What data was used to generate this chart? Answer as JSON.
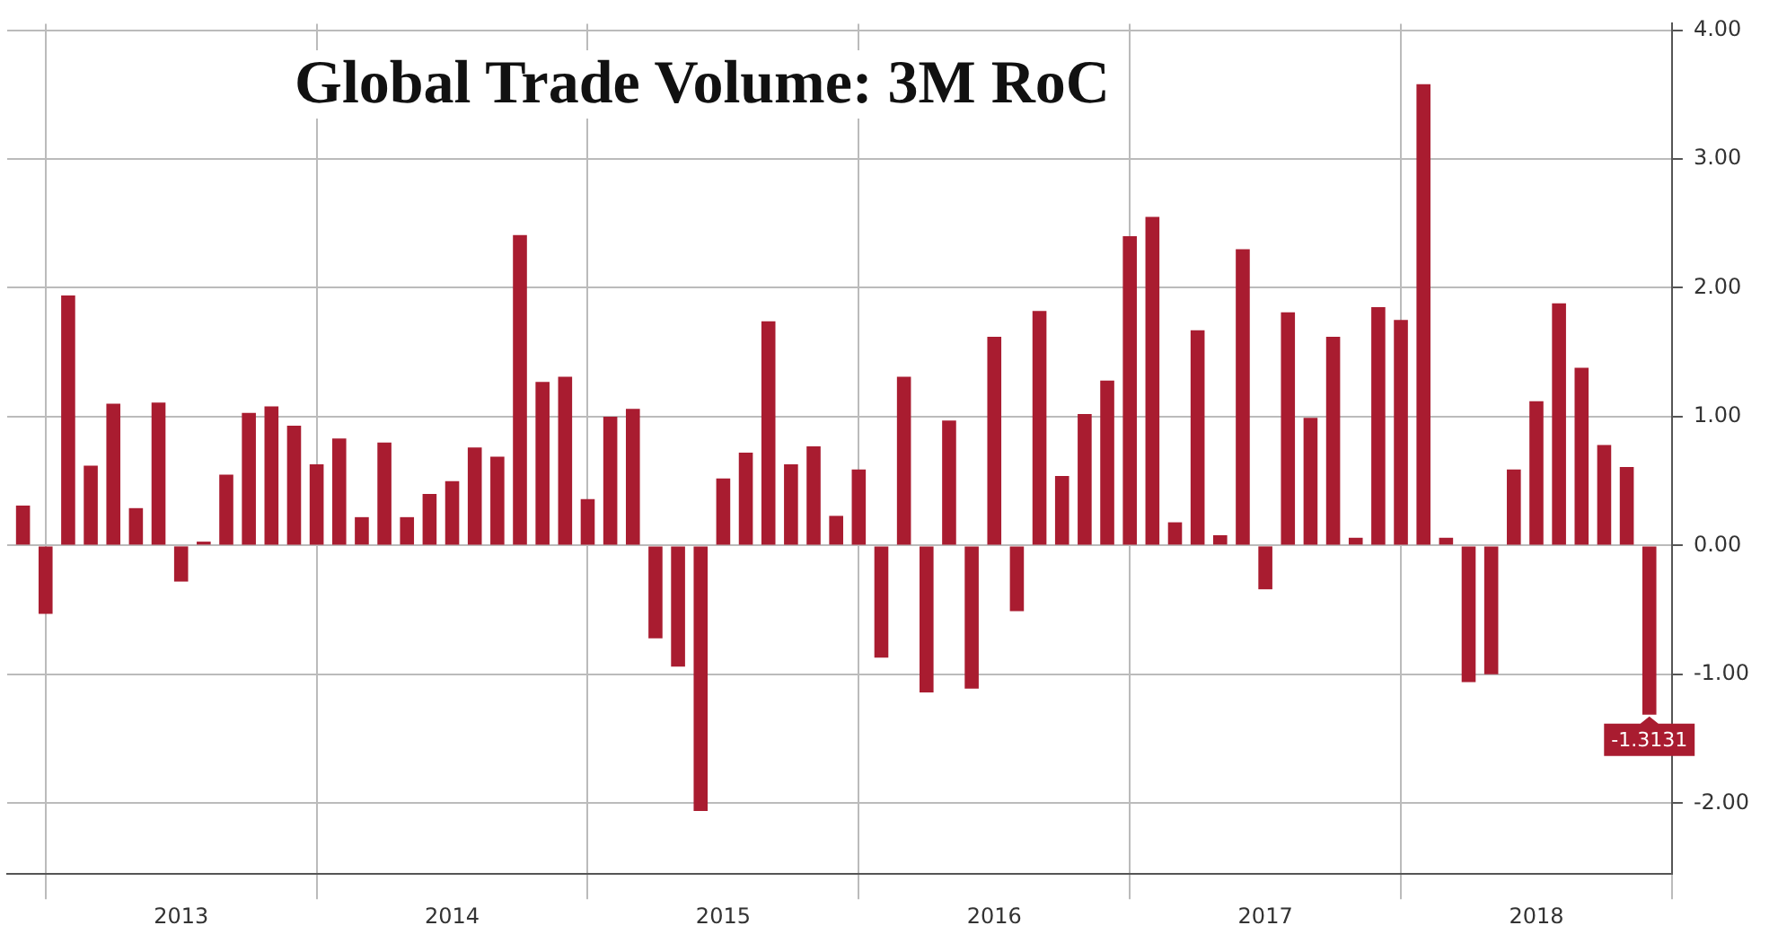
{
  "chart_data": {
    "type": "bar",
    "title": "Global Trade Volume: 3M RoC",
    "x": [
      "2012-12",
      "2013-01",
      "2013-02",
      "2013-03",
      "2013-04",
      "2013-05",
      "2013-06",
      "2013-07",
      "2013-08",
      "2013-09",
      "2013-10",
      "2013-11",
      "2013-12",
      "2014-01",
      "2014-02",
      "2014-03",
      "2014-04",
      "2014-05",
      "2014-06",
      "2014-07",
      "2014-08",
      "2014-09",
      "2014-10",
      "2014-11",
      "2014-12",
      "2015-01",
      "2015-02",
      "2015-03",
      "2015-04",
      "2015-05",
      "2015-06",
      "2015-07",
      "2015-08",
      "2015-09",
      "2015-10",
      "2015-11",
      "2015-12",
      "2016-01",
      "2016-02",
      "2016-03",
      "2016-04",
      "2016-05",
      "2016-06",
      "2016-07",
      "2016-08",
      "2016-09",
      "2016-10",
      "2016-11",
      "2016-12",
      "2017-01",
      "2017-02",
      "2017-03",
      "2017-04",
      "2017-05",
      "2017-06",
      "2017-07",
      "2017-08",
      "2017-09",
      "2017-10",
      "2017-11",
      "2017-12",
      "2018-01",
      "2018-02",
      "2018-03",
      "2018-04",
      "2018-05",
      "2018-06",
      "2018-07",
      "2018-08",
      "2018-09",
      "2018-10",
      "2018-11",
      "2018-12"
    ],
    "values": [
      0.31,
      -0.53,
      1.94,
      0.62,
      1.1,
      0.29,
      1.11,
      -0.28,
      0.03,
      0.55,
      1.03,
      1.08,
      0.93,
      0.63,
      0.83,
      0.22,
      0.8,
      0.22,
      0.4,
      0.5,
      0.76,
      0.69,
      2.41,
      1.27,
      1.31,
      0.36,
      1.0,
      1.06,
      -0.72,
      -0.94,
      -2.06,
      0.52,
      0.72,
      1.74,
      0.63,
      0.77,
      0.23,
      0.59,
      -0.87,
      1.31,
      -1.14,
      0.97,
      -1.11,
      1.62,
      -0.51,
      1.82,
      0.54,
      1.02,
      1.28,
      2.4,
      2.55,
      0.18,
      1.67,
      0.08,
      2.3,
      -0.34,
      1.81,
      0.99,
      1.62,
      0.06,
      1.85,
      1.75,
      3.58,
      0.06,
      -1.06,
      -1.0,
      0.59,
      1.12,
      1.88,
      1.38,
      0.78,
      0.61,
      -1.3131
    ],
    "value_labels": [
      null,
      null,
      null,
      null,
      null,
      null,
      null,
      null,
      null,
      null,
      null,
      null,
      null,
      null,
      null,
      null,
      null,
      null,
      null,
      null,
      null,
      null,
      null,
      null,
      null,
      null,
      null,
      null,
      null,
      null,
      null,
      null,
      null,
      null,
      null,
      null,
      null,
      null,
      null,
      null,
      null,
      null,
      null,
      null,
      null,
      null,
      null,
      null,
      null,
      null,
      null,
      null,
      null,
      null,
      null,
      null,
      null,
      null,
      null,
      null,
      null,
      null,
      null,
      null,
      null,
      null,
      null,
      null,
      null,
      null,
      null,
      null,
      "-1.3131"
    ],
    "color": "#a91c30",
    "xlim": [
      "2012-11-10",
      "2019-01"
    ],
    "xticks": [
      {
        "value": "2013-01",
        "label": null
      },
      {
        "value": "2013-07",
        "label": "2013"
      },
      {
        "value": "2014-01",
        "label": null
      },
      {
        "value": "2014-07",
        "label": "2014"
      },
      {
        "value": "2015-01",
        "label": null
      },
      {
        "value": "2015-07",
        "label": "2015"
      },
      {
        "value": "2016-01",
        "label": null
      },
      {
        "value": "2016-07",
        "label": "2016"
      },
      {
        "value": "2017-01",
        "label": null
      },
      {
        "value": "2017-07",
        "label": "2017"
      },
      {
        "value": "2018-01",
        "label": null
      },
      {
        "value": "2018-07",
        "label": "2018"
      },
      {
        "value": "2019-01",
        "label": null
      }
    ],
    "ylim": [
      -2.55,
      4.05
    ],
    "yticks": [
      {
        "value": -2,
        "label": "-2.00"
      },
      {
        "value": -1,
        "label": "-1.00"
      },
      {
        "value": 0,
        "label": "0.00"
      },
      {
        "value": 1,
        "label": "1.00"
      },
      {
        "value": 2,
        "label": "2.00"
      },
      {
        "value": 3,
        "label": "3.00"
      },
      {
        "value": 4,
        "label": "4.00"
      }
    ],
    "grid": true,
    "legend": false
  }
}
